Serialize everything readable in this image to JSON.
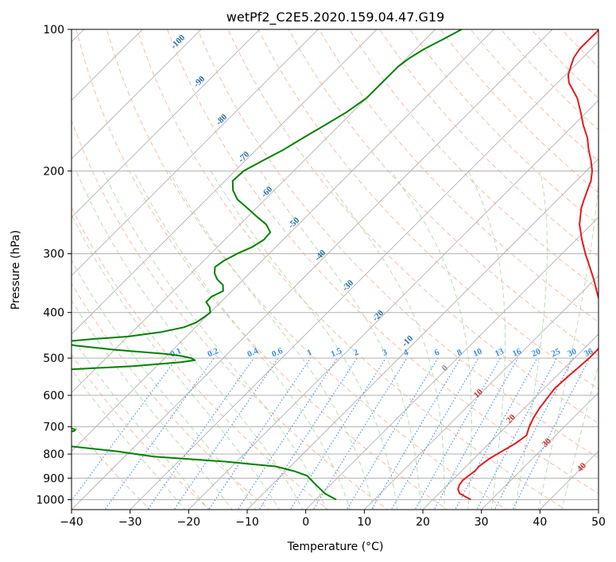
{
  "chart_data": {
    "type": "skew-t",
    "title": "wetPf2_C2E5.2020.159.04.47.G19",
    "xlabel": "Temperature (°C)",
    "ylabel": "Pressure (hPa)",
    "xlim": [
      -40,
      50
    ],
    "ylim": [
      1050,
      100
    ],
    "x_ticks": [
      -40,
      -30,
      -20,
      -10,
      0,
      10,
      20,
      30,
      40,
      50
    ],
    "x_tick_labels": [
      "−40",
      "−30",
      "−20",
      "−10",
      "0",
      "10",
      "20",
      "30",
      "40",
      "50"
    ],
    "y_ticks": [
      100,
      200,
      300,
      400,
      500,
      600,
      700,
      800,
      900,
      1000
    ],
    "y_tick_labels": [
      "100",
      "200",
      "300",
      "400",
      "500",
      "600",
      "700",
      "800",
      "900",
      "1000"
    ],
    "grid": true,
    "colors": {
      "temperature": "#e41a1c",
      "dewpoint": "#008000",
      "isotherm": "#aaaaaa",
      "dry_adiabat": "#f4a582",
      "moist_adiabat": "#a6d49b",
      "mixing_ratio": "#3c8ee0",
      "dry_label": "#2a6fa8",
      "moist_label": "#d03030",
      "label_zero": "#888888"
    },
    "series": [
      {
        "name": "",
        "kind": "temperature",
        "pressure": [
          1000,
          985,
          970,
          950,
          930,
          910,
          890,
          870,
          850,
          820,
          790,
          760,
          730,
          700,
          670,
          640,
          610,
          580,
          550,
          520,
          500,
          480,
          460,
          440,
          420,
          400,
          380,
          360,
          340,
          320,
          300,
          280,
          260,
          240,
          230,
          220,
          210,
          200,
          190,
          180,
          170,
          160,
          150,
          140,
          130,
          125,
          120,
          115,
          110,
          105,
          100
        ],
        "temperature": [
          26.5,
          25.0,
          23.5,
          22.5,
          22.0,
          21.8,
          22.0,
          22.3,
          22.2,
          22.6,
          23.5,
          24.5,
          25.0,
          24.0,
          23.2,
          22.6,
          22.2,
          21.8,
          22.0,
          22.3,
          22.5,
          22.5,
          22.0,
          21.0,
          19.0,
          17.0,
          14.7,
          12.3,
          9.8,
          7.0,
          4.0,
          1.0,
          -2.0,
          -4.5,
          -5.5,
          -6.5,
          -7.5,
          -9.0,
          -11.0,
          -13.3,
          -15.5,
          -18.3,
          -21.0,
          -24.0,
          -28.0,
          -29.5,
          -30.5,
          -31.5,
          -32.0,
          -32.0,
          -32.0
        ]
      },
      {
        "name": "",
        "kind": "dewpoint",
        "pressure": [
          1000,
          985,
          970,
          950,
          930,
          910,
          890,
          870,
          850,
          830,
          810,
          790,
          770,
          750,
          735,
          725,
          720,
          715,
          710,
          700,
          690,
          680,
          670,
          660,
          650,
          640,
          630,
          620,
          610,
          600,
          590,
          580,
          570,
          560,
          555,
          550,
          545,
          540,
          530,
          520,
          510,
          505,
          500,
          495,
          490,
          480,
          470,
          465,
          460,
          455,
          450,
          440,
          430,
          420,
          410,
          400,
          390,
          380,
          370,
          360,
          350,
          340,
          330,
          320,
          310,
          300,
          290,
          280,
          270,
          260,
          250,
          240,
          230,
          220,
          210,
          200,
          190,
          180,
          170,
          160,
          150,
          140,
          130,
          125,
          120,
          115,
          110,
          105,
          100
        ],
        "temperature": [
          3.5,
          2.0,
          0.5,
          -1.0,
          -2.5,
          -4.0,
          -5.5,
          -8.5,
          -12.5,
          -22.0,
          -35.0,
          -42.0,
          -51.0,
          -57.0,
          -62.0,
          -59.0,
          -55.0,
          -53.0,
          -53.0,
          -55.0,
          -60.0,
          -68.0,
          -77.0,
          -84.0,
          -87.0,
          -84.0,
          -78.0,
          -71.0,
          -66.0,
          -65.0,
          -68.0,
          -78.0,
          -91.0,
          -96.0,
          -95.0,
          -93.0,
          -85.0,
          -76.0,
          -66.0,
          -54.0,
          -46.5,
          -44.5,
          -45.5,
          -47.5,
          -50.5,
          -60.0,
          -67.5,
          -70.0,
          -69.0,
          -65.0,
          -60.0,
          -55.0,
          -52.0,
          -50.7,
          -50.3,
          -50.0,
          -51.0,
          -52.5,
          -52.5,
          -51.5,
          -52.5,
          -54.5,
          -56.0,
          -57.0,
          -56.5,
          -55.5,
          -54.0,
          -53.3,
          -53.5,
          -55.5,
          -58.5,
          -61.5,
          -64.7,
          -67.0,
          -68.7,
          -68.5,
          -67.0,
          -65.3,
          -64.0,
          -62.5,
          -61.0,
          -60.0,
          -60.0,
          -60.0,
          -60.0,
          -59.5,
          -58.5,
          -57.0,
          -55.5
        ]
      }
    ],
    "mixing_ratio_labels": [
      "0.1",
      "0.2",
      "0.4",
      "0.6",
      "1",
      "1.5",
      "2",
      "3",
      "4",
      "6",
      "8",
      "10",
      "13",
      "16",
      "20",
      "25",
      "30",
      "36"
    ],
    "dry_adiabat_labels": [
      "-100",
      "-90",
      "-80",
      "-70",
      "-60",
      "-50",
      "-40",
      "-30",
      "-20",
      "-10"
    ],
    "moist_adiabat_labels": [
      "0",
      "10",
      "20",
      "30",
      "40"
    ]
  }
}
